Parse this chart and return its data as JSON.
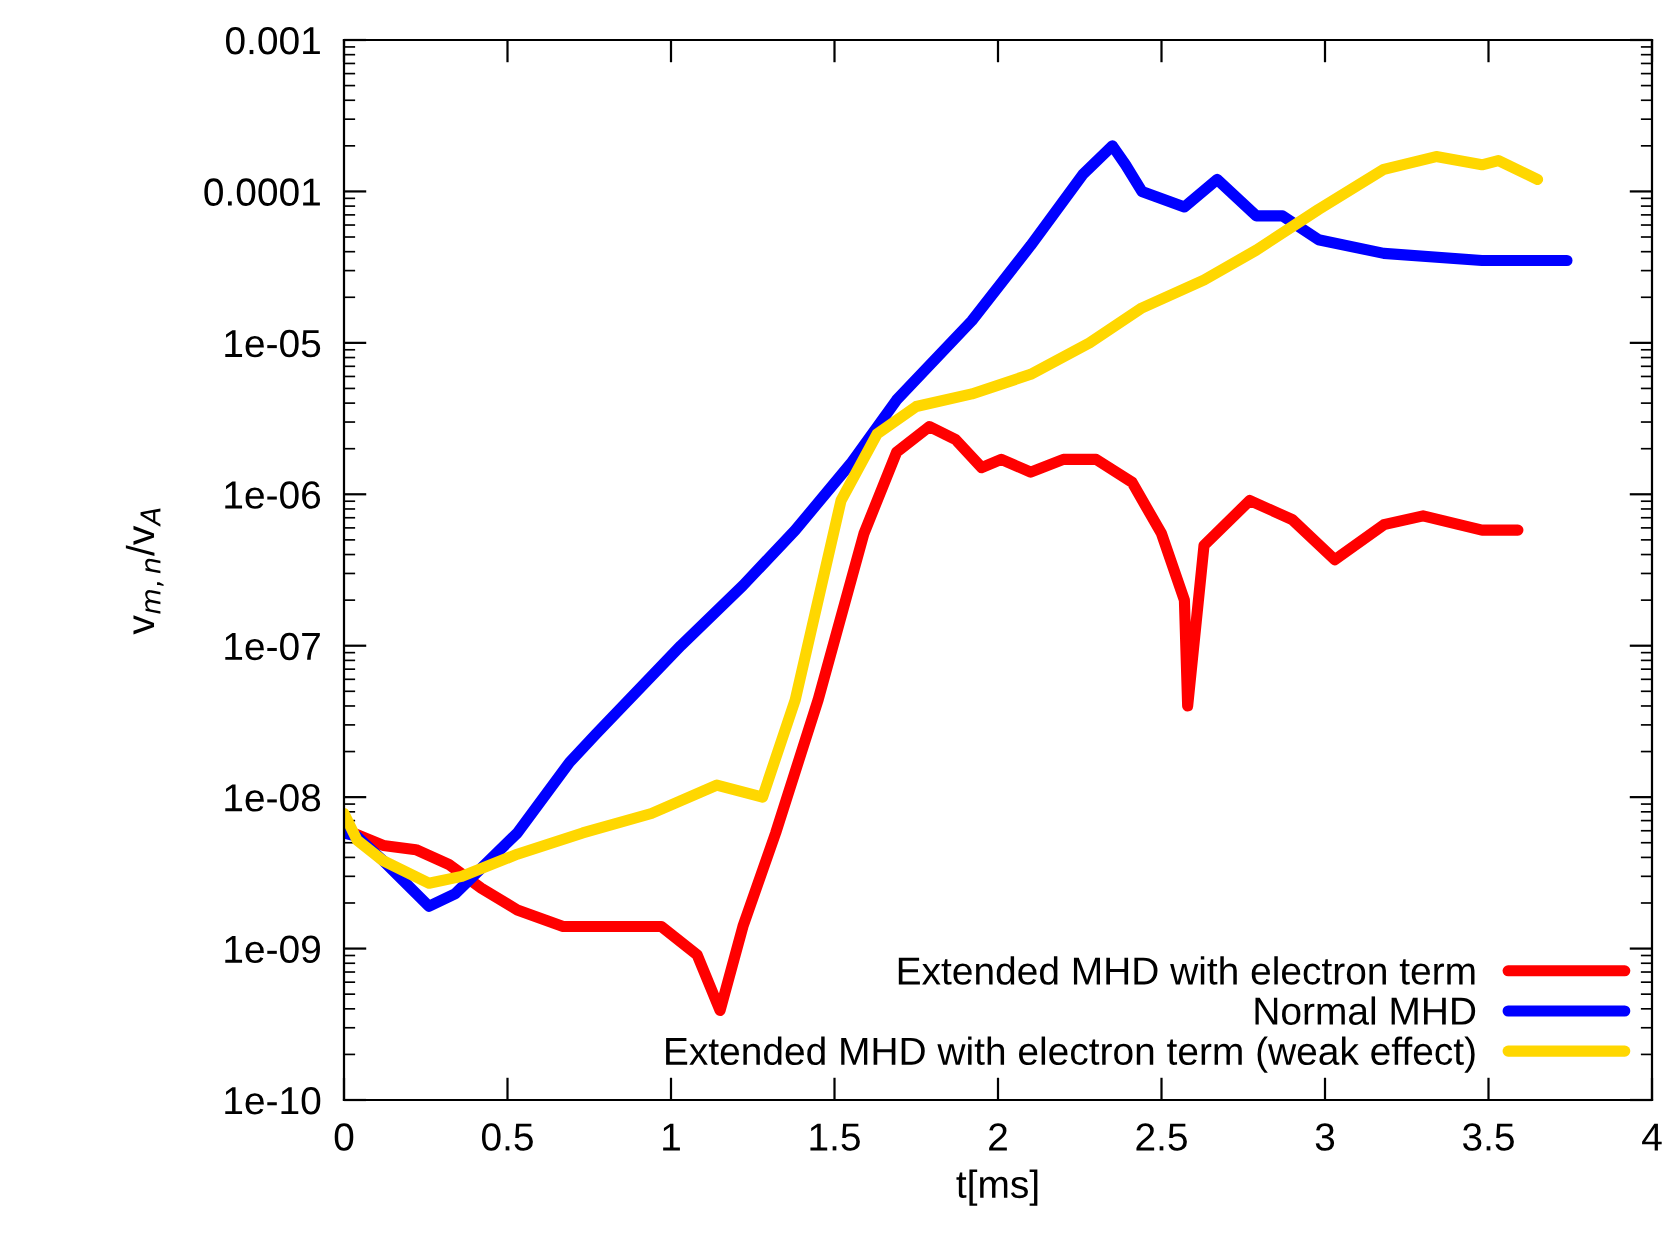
{
  "chart_data": {
    "type": "line",
    "xlabel": "t[ms]",
    "ylabel": "v$_{m,n}$/v$_{A}$",
    "log": "y",
    "legend": "bottom right",
    "grid": false,
    "line_style": "solid",
    "marker": "none",
    "xlim": [
      0,
      4
    ],
    "xticks": [
      0,
      0.5,
      1,
      1.5,
      2,
      2.5,
      3,
      3.5,
      4
    ],
    "ylim": [
      1e-10,
      0.001
    ],
    "yticks": [
      {
        "value": 1e-10,
        "label": "1e-10"
      },
      {
        "value": 1e-09,
        "label": "1e-09"
      },
      {
        "value": 1e-08,
        "label": "1e-08"
      },
      {
        "value": 1e-07,
        "label": "1e-07"
      },
      {
        "value": 1e-06,
        "label": "1e-06"
      },
      {
        "value": 1e-05,
        "label": "1e-05"
      },
      0.0001,
      0.001
    ],
    "series": [
      {
        "name": "Extended MHD with electron term",
        "color": "#ff0000",
        "x": [
          0.01,
          0.12,
          0.22,
          0.32,
          0.42,
          0.53,
          0.67,
          0.83,
          0.97,
          1.08,
          1.15,
          1.22,
          1.32,
          1.45,
          1.59,
          1.69,
          1.79,
          1.87,
          1.95,
          2.01,
          2.1,
          2.2,
          2.3,
          2.41,
          2.5,
          2.57,
          2.58,
          2.63,
          2.77,
          2.9,
          3.03,
          3.18,
          3.3,
          3.48,
          3.59
        ],
        "values": [
          6e-09,
          4.8e-09,
          4.5e-09,
          3.6e-09,
          2.5e-09,
          1.8e-09,
          1.4e-09,
          1.4e-09,
          1.4e-09,
          9.1e-10,
          3.9e-10,
          1.4e-09,
          5.8e-09,
          4.4e-08,
          5.5e-07,
          1.9e-06,
          2.8e-06,
          2.3e-06,
          1.5e-06,
          1.7e-06,
          1.4e-06,
          1.7e-06,
          1.7e-06,
          1.2e-06,
          5.5e-07,
          2e-07,
          4e-08,
          4.6e-07,
          9.1e-07,
          6.8e-07,
          3.7e-07,
          6.3e-07,
          7.2e-07,
          5.8e-07,
          5.8e-07
        ]
      },
      {
        "name": "Normal MHD",
        "color": "#0000ff",
        "x": [
          0,
          0.04,
          0.12,
          0.26,
          0.34,
          0.53,
          0.69,
          0.77,
          1.03,
          1.22,
          1.38,
          1.55,
          1.69,
          1.92,
          2.1,
          2.26,
          2.35,
          2.39,
          2.44,
          2.57,
          2.67,
          2.79,
          2.87,
          2.98,
          3.18,
          3.48,
          3.74
        ],
        "values": [
          5.8e-09,
          5.5e-09,
          3.8e-09,
          1.9e-09,
          2.3e-09,
          5.8e-09,
          1.7e-08,
          2.6e-08,
          1e-07,
          2.5e-07,
          5.8e-07,
          1.6e-06,
          4.2e-06,
          1.4e-05,
          4.4e-05,
          0.00013,
          0.0002,
          0.00015,
          0.0001,
          7.9e-05,
          0.00012,
          6.9e-05,
          6.9e-05,
          4.8e-05,
          3.9e-05,
          3.5e-05,
          3.5e-05
        ]
      },
      {
        "name": "Extended MHD with electron term (weak effect)",
        "color": "#ffd700",
        "x": [
          0,
          0.04,
          0.12,
          0.26,
          0.36,
          0.53,
          0.73,
          0.94,
          1.14,
          1.28,
          1.38,
          1.52,
          1.63,
          1.75,
          1.92,
          2.1,
          2.28,
          2.44,
          2.63,
          2.79,
          2.98,
          3.18,
          3.34,
          3.48,
          3.53,
          3.65
        ],
        "values": [
          7.8e-09,
          5.2e-09,
          3.8e-09,
          2.7e-09,
          3e-09,
          4.2e-09,
          5.8e-09,
          7.8e-09,
          1.2e-08,
          1e-08,
          4.4e-08,
          9.1e-07,
          2.5e-06,
          3.8e-06,
          4.6e-06,
          6.2e-06,
          1e-05,
          1.7e-05,
          2.6e-05,
          4.1e-05,
          7.6e-05,
          0.00014,
          0.00017,
          0.00015,
          0.00016,
          0.00012
        ]
      }
    ]
  }
}
